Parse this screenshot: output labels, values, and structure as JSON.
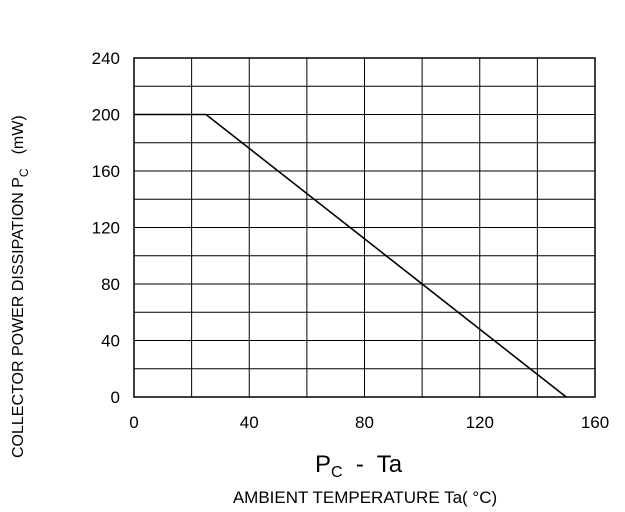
{
  "chart_data": {
    "type": "line",
    "caption_main": "P",
    "caption_main_sub": "C",
    "caption_main_rest": "  -  Ta",
    "xlabel": "AMBIENT TEMPERATURE Ta( °C)",
    "ylabel_main": "COLLECTOR POWER DISSIPATION P",
    "ylabel_sub": "C",
    "ylabel_unit": "(mW)",
    "xlim": [
      0,
      160
    ],
    "ylim": [
      0,
      240
    ],
    "x_ticks": [
      "0",
      "40",
      "80",
      "120",
      "160"
    ],
    "y_ticks": [
      "0",
      "40",
      "80",
      "120",
      "160",
      "200",
      "240"
    ],
    "x_tick_values": [
      0,
      40,
      80,
      120,
      160
    ],
    "y_tick_values": [
      0,
      40,
      80,
      120,
      160,
      200,
      240
    ],
    "grid": true,
    "grid_x_step": 20,
    "grid_y_step": 20,
    "series": [
      {
        "x": [
          0,
          25,
          150
        ],
        "y": [
          200,
          200,
          0
        ]
      }
    ]
  }
}
